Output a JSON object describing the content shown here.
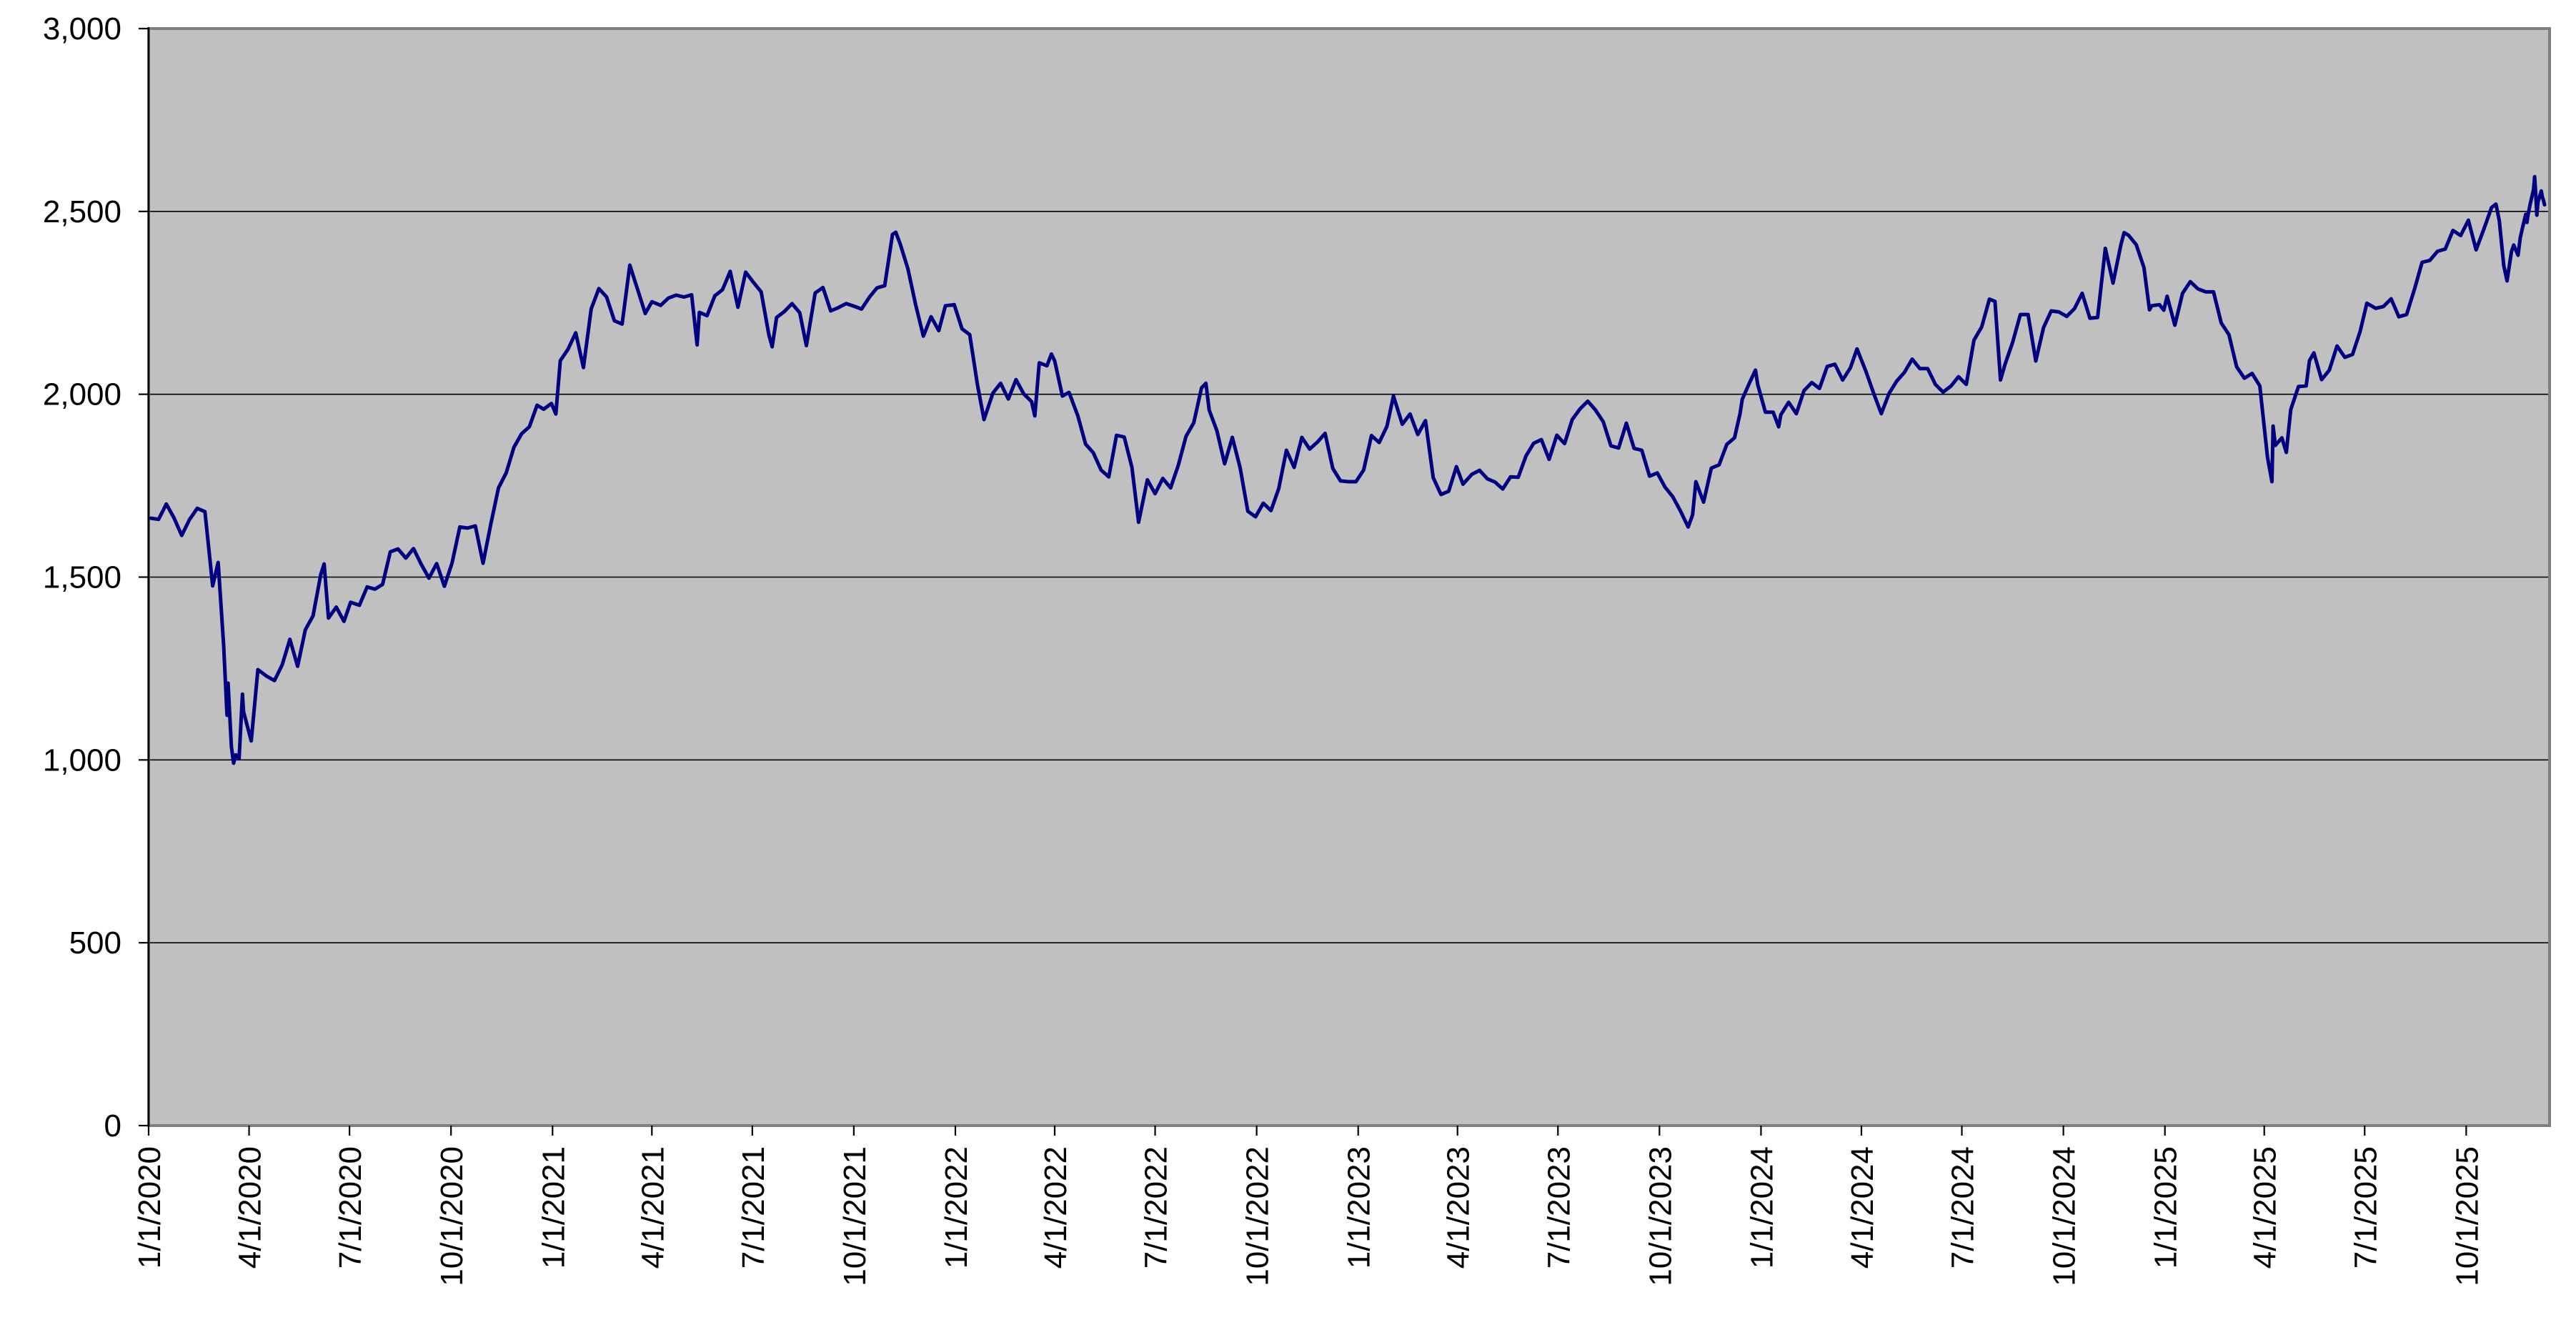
{
  "chart_data": {
    "type": "line",
    "ylim": [
      0,
      3000
    ],
    "y_tick_interval": 500,
    "y_tick_labels": [
      "0",
      "500",
      "1,000",
      "1,500",
      "2,000",
      "2,500",
      "3,000"
    ],
    "x_tick_labels": [
      "1/1/2020",
      "4/1/2020",
      "7/1/2020",
      "10/1/2020",
      "1/1/2021",
      "4/1/2021",
      "7/1/2021",
      "10/1/2021",
      "1/1/2022",
      "4/1/2022",
      "7/1/2022",
      "10/1/2022",
      "1/1/2023",
      "4/1/2023",
      "7/1/2023",
      "10/1/2023",
      "1/1/2024",
      "4/1/2024",
      "7/1/2024",
      "10/1/2024",
      "1/1/2025",
      "4/1/2025",
      "7/1/2025",
      "10/1/2025"
    ],
    "x_axis_start": "2020-01-01",
    "x_axis_end": "2025-12-11",
    "grid": true,
    "legend": false,
    "style": {
      "line_color": "#000080",
      "plot_bg": "#C0C0C0",
      "plot_border": "#7F7F7F",
      "grid_color": "#000000",
      "axis_color": "#000000",
      "text_color": "#000000",
      "page_bg": "#FFFFFF"
    },
    "points": [
      [
        "2020-01-03",
        1661
      ],
      [
        "2020-01-10",
        1658
      ],
      [
        "2020-01-17",
        1700
      ],
      [
        "2020-01-24",
        1662
      ],
      [
        "2020-01-31",
        1614
      ],
      [
        "2020-02-07",
        1657
      ],
      [
        "2020-02-14",
        1688
      ],
      [
        "2020-02-21",
        1679
      ],
      [
        "2020-02-28",
        1476
      ],
      [
        "2020-03-04",
        1540
      ],
      [
        "2020-03-06",
        1449
      ],
      [
        "2020-03-09",
        1313
      ],
      [
        "2020-03-12",
        1122
      ],
      [
        "2020-03-13",
        1210
      ],
      [
        "2020-03-16",
        1037
      ],
      [
        "2020-03-18",
        991
      ],
      [
        "2020-03-20",
        1014
      ],
      [
        "2020-03-23",
        1004
      ],
      [
        "2020-03-26",
        1180
      ],
      [
        "2020-03-27",
        1132
      ],
      [
        "2020-04-03",
        1052
      ],
      [
        "2020-04-09",
        1247
      ],
      [
        "2020-04-17",
        1229
      ],
      [
        "2020-04-24",
        1217
      ],
      [
        "2020-05-01",
        1260
      ],
      [
        "2020-05-08",
        1330
      ],
      [
        "2020-05-15",
        1256
      ],
      [
        "2020-05-22",
        1356
      ],
      [
        "2020-05-29",
        1394
      ],
      [
        "2020-06-05",
        1507
      ],
      [
        "2020-06-08",
        1536
      ],
      [
        "2020-06-12",
        1388
      ],
      [
        "2020-06-19",
        1418
      ],
      [
        "2020-06-26",
        1379
      ],
      [
        "2020-07-02",
        1431
      ],
      [
        "2020-07-10",
        1423
      ],
      [
        "2020-07-17",
        1473
      ],
      [
        "2020-07-24",
        1467
      ],
      [
        "2020-07-31",
        1480
      ],
      [
        "2020-08-07",
        1569
      ],
      [
        "2020-08-14",
        1577
      ],
      [
        "2020-08-21",
        1552
      ],
      [
        "2020-08-28",
        1578
      ],
      [
        "2020-09-04",
        1535
      ],
      [
        "2020-09-11",
        1497
      ],
      [
        "2020-09-18",
        1537
      ],
      [
        "2020-09-25",
        1475
      ],
      [
        "2020-10-02",
        1539
      ],
      [
        "2020-10-09",
        1637
      ],
      [
        "2020-10-16",
        1634
      ],
      [
        "2020-10-23",
        1640
      ],
      [
        "2020-10-30",
        1538
      ],
      [
        "2020-11-06",
        1644
      ],
      [
        "2020-11-13",
        1744
      ],
      [
        "2020-11-20",
        1785
      ],
      [
        "2020-11-27",
        1855
      ],
      [
        "2020-12-04",
        1892
      ],
      [
        "2020-12-11",
        1911
      ],
      [
        "2020-12-18",
        1970
      ],
      [
        "2020-12-24",
        1959
      ],
      [
        "2020-12-31",
        1975
      ],
      [
        "2021-01-04",
        1946
      ],
      [
        "2021-01-08",
        2092
      ],
      [
        "2021-01-15",
        2123
      ],
      [
        "2021-01-22",
        2168
      ],
      [
        "2021-01-29",
        2073
      ],
      [
        "2021-02-05",
        2233
      ],
      [
        "2021-02-12",
        2289
      ],
      [
        "2021-02-19",
        2266
      ],
      [
        "2021-02-26",
        2201
      ],
      [
        "2021-03-05",
        2192
      ],
      [
        "2021-03-12",
        2353
      ],
      [
        "2021-03-19",
        2287
      ],
      [
        "2021-03-26",
        2221
      ],
      [
        "2021-04-01",
        2253
      ],
      [
        "2021-04-09",
        2243
      ],
      [
        "2021-04-16",
        2263
      ],
      [
        "2021-04-23",
        2271
      ],
      [
        "2021-04-30",
        2266
      ],
      [
        "2021-05-07",
        2272
      ],
      [
        "2021-05-12",
        2135
      ],
      [
        "2021-05-14",
        2224
      ],
      [
        "2021-05-21",
        2215
      ],
      [
        "2021-05-28",
        2269
      ],
      [
        "2021-06-04",
        2286
      ],
      [
        "2021-06-11",
        2336
      ],
      [
        "2021-06-18",
        2238
      ],
      [
        "2021-06-25",
        2334
      ],
      [
        "2021-07-02",
        2306
      ],
      [
        "2021-07-09",
        2280
      ],
      [
        "2021-07-16",
        2163
      ],
      [
        "2021-07-19",
        2130
      ],
      [
        "2021-07-23",
        2210
      ],
      [
        "2021-07-30",
        2226
      ],
      [
        "2021-08-06",
        2248
      ],
      [
        "2021-08-13",
        2223
      ],
      [
        "2021-08-19",
        2133
      ],
      [
        "2021-08-27",
        2277
      ],
      [
        "2021-09-03",
        2292
      ],
      [
        "2021-09-10",
        2228
      ],
      [
        "2021-09-17",
        2237
      ],
      [
        "2021-09-24",
        2248
      ],
      [
        "2021-10-01",
        2241
      ],
      [
        "2021-10-08",
        2233
      ],
      [
        "2021-10-15",
        2265
      ],
      [
        "2021-10-22",
        2291
      ],
      [
        "2021-10-29",
        2297
      ],
      [
        "2021-11-05",
        2437
      ],
      [
        "2021-11-08",
        2443
      ],
      [
        "2021-11-12",
        2411
      ],
      [
        "2021-11-19",
        2343
      ],
      [
        "2021-11-26",
        2245
      ],
      [
        "2021-12-03",
        2159
      ],
      [
        "2021-12-10",
        2212
      ],
      [
        "2021-12-17",
        2174
      ],
      [
        "2021-12-23",
        2242
      ],
      [
        "2021-12-31",
        2245
      ],
      [
        "2022-01-07",
        2179
      ],
      [
        "2022-01-14",
        2163
      ],
      [
        "2022-01-21",
        2026
      ],
      [
        "2022-01-27",
        1931
      ],
      [
        "2022-02-04",
        2003
      ],
      [
        "2022-02-11",
        2030
      ],
      [
        "2022-02-18",
        1987
      ],
      [
        "2022-02-25",
        2040
      ],
      [
        "2022-03-04",
        2001
      ],
      [
        "2022-03-11",
        1980
      ],
      [
        "2022-03-14",
        1941
      ],
      [
        "2022-03-18",
        2086
      ],
      [
        "2022-03-25",
        2078
      ],
      [
        "2022-03-29",
        2110
      ],
      [
        "2022-04-01",
        2091
      ],
      [
        "2022-04-08",
        1995
      ],
      [
        "2022-04-14",
        2005
      ],
      [
        "2022-04-22",
        1941
      ],
      [
        "2022-04-29",
        1864
      ],
      [
        "2022-05-06",
        1840
      ],
      [
        "2022-05-13",
        1793
      ],
      [
        "2022-05-20",
        1774
      ],
      [
        "2022-05-27",
        1888
      ],
      [
        "2022-06-03",
        1883
      ],
      [
        "2022-06-10",
        1800
      ],
      [
        "2022-06-16",
        1650
      ],
      [
        "2022-06-24",
        1766
      ],
      [
        "2022-07-01",
        1728
      ],
      [
        "2022-07-08",
        1770
      ],
      [
        "2022-07-15",
        1744
      ],
      [
        "2022-07-22",
        1806
      ],
      [
        "2022-07-29",
        1885
      ],
      [
        "2022-08-05",
        1922
      ],
      [
        "2022-08-12",
        2017
      ],
      [
        "2022-08-16",
        2030
      ],
      [
        "2022-08-19",
        1957
      ],
      [
        "2022-08-26",
        1900
      ],
      [
        "2022-09-02",
        1810
      ],
      [
        "2022-09-09",
        1882
      ],
      [
        "2022-09-16",
        1799
      ],
      [
        "2022-09-23",
        1680
      ],
      [
        "2022-09-30",
        1665
      ],
      [
        "2022-10-07",
        1702
      ],
      [
        "2022-10-14",
        1682
      ],
      [
        "2022-10-21",
        1742
      ],
      [
        "2022-10-28",
        1847
      ],
      [
        "2022-11-04",
        1800
      ],
      [
        "2022-11-11",
        1882
      ],
      [
        "2022-11-18",
        1850
      ],
      [
        "2022-11-25",
        1869
      ],
      [
        "2022-12-02",
        1893
      ],
      [
        "2022-12-09",
        1797
      ],
      [
        "2022-12-16",
        1763
      ],
      [
        "2022-12-23",
        1761
      ],
      [
        "2022-12-30",
        1761
      ],
      [
        "2023-01-06",
        1793
      ],
      [
        "2023-01-13",
        1887
      ],
      [
        "2023-01-20",
        1868
      ],
      [
        "2023-01-27",
        1912
      ],
      [
        "2023-02-02",
        1995
      ],
      [
        "2023-02-10",
        1918
      ],
      [
        "2023-02-17",
        1946
      ],
      [
        "2023-02-24",
        1890
      ],
      [
        "2023-03-03",
        1928
      ],
      [
        "2023-03-10",
        1772
      ],
      [
        "2023-03-17",
        1726
      ],
      [
        "2023-03-24",
        1735
      ],
      [
        "2023-03-31",
        1802
      ],
      [
        "2023-04-06",
        1754
      ],
      [
        "2023-04-14",
        1781
      ],
      [
        "2023-04-21",
        1792
      ],
      [
        "2023-04-28",
        1769
      ],
      [
        "2023-05-05",
        1760
      ],
      [
        "2023-05-12",
        1741
      ],
      [
        "2023-05-19",
        1774
      ],
      [
        "2023-05-26",
        1773
      ],
      [
        "2023-06-02",
        1831
      ],
      [
        "2023-06-09",
        1866
      ],
      [
        "2023-06-16",
        1876
      ],
      [
        "2023-06-23",
        1822
      ],
      [
        "2023-06-30",
        1888
      ],
      [
        "2023-07-07",
        1865
      ],
      [
        "2023-07-14",
        1931
      ],
      [
        "2023-07-21",
        1960
      ],
      [
        "2023-07-28",
        1981
      ],
      [
        "2023-08-04",
        1957
      ],
      [
        "2023-08-11",
        1925
      ],
      [
        "2023-08-18",
        1859
      ],
      [
        "2023-08-25",
        1853
      ],
      [
        "2023-09-01",
        1921
      ],
      [
        "2023-09-08",
        1852
      ],
      [
        "2023-09-15",
        1847
      ],
      [
        "2023-09-22",
        1776
      ],
      [
        "2023-09-29",
        1785
      ],
      [
        "2023-10-06",
        1746
      ],
      [
        "2023-10-13",
        1720
      ],
      [
        "2023-10-20",
        1681
      ],
      [
        "2023-10-27",
        1637
      ],
      [
        "2023-10-31",
        1670
      ],
      [
        "2023-11-03",
        1761
      ],
      [
        "2023-11-10",
        1705
      ],
      [
        "2023-11-17",
        1798
      ],
      [
        "2023-11-24",
        1807
      ],
      [
        "2023-12-01",
        1863
      ],
      [
        "2023-12-08",
        1881
      ],
      [
        "2023-12-13",
        1947
      ],
      [
        "2023-12-15",
        1986
      ],
      [
        "2023-12-22",
        2034
      ],
      [
        "2023-12-27",
        2066
      ],
      [
        "2023-12-29",
        2027
      ],
      [
        "2024-01-05",
        1951
      ],
      [
        "2024-01-12",
        1951
      ],
      [
        "2024-01-17",
        1911
      ],
      [
        "2024-01-19",
        1944
      ],
      [
        "2024-01-26",
        1978
      ],
      [
        "2024-02-02",
        1947
      ],
      [
        "2024-02-09",
        2010
      ],
      [
        "2024-02-16",
        2032
      ],
      [
        "2024-02-23",
        2016
      ],
      [
        "2024-03-01",
        2076
      ],
      [
        "2024-03-08",
        2082
      ],
      [
        "2024-03-15",
        2039
      ],
      [
        "2024-03-22",
        2072
      ],
      [
        "2024-03-28",
        2124
      ],
      [
        "2024-04-05",
        2063
      ],
      [
        "2024-04-12",
        2003
      ],
      [
        "2024-04-19",
        1947
      ],
      [
        "2024-04-26",
        2002
      ],
      [
        "2024-05-03",
        2036
      ],
      [
        "2024-05-10",
        2060
      ],
      [
        "2024-05-17",
        2096
      ],
      [
        "2024-05-24",
        2070
      ],
      [
        "2024-05-31",
        2070
      ],
      [
        "2024-06-07",
        2027
      ],
      [
        "2024-06-14",
        2006
      ],
      [
        "2024-06-21",
        2022
      ],
      [
        "2024-06-28",
        2048
      ],
      [
        "2024-07-05",
        2027
      ],
      [
        "2024-07-12",
        2148
      ],
      [
        "2024-07-19",
        2184
      ],
      [
        "2024-07-26",
        2260
      ],
      [
        "2024-07-31",
        2254
      ],
      [
        "2024-08-05",
        2039
      ],
      [
        "2024-08-09",
        2081
      ],
      [
        "2024-08-16",
        2142
      ],
      [
        "2024-08-23",
        2218
      ],
      [
        "2024-08-30",
        2218
      ],
      [
        "2024-09-06",
        2091
      ],
      [
        "2024-09-13",
        2182
      ],
      [
        "2024-09-20",
        2228
      ],
      [
        "2024-09-27",
        2225
      ],
      [
        "2024-10-04",
        2213
      ],
      [
        "2024-10-11",
        2234
      ],
      [
        "2024-10-18",
        2276
      ],
      [
        "2024-10-25",
        2208
      ],
      [
        "2024-11-01",
        2210
      ],
      [
        "2024-11-08",
        2399
      ],
      [
        "2024-11-15",
        2304
      ],
      [
        "2024-11-22",
        2407
      ],
      [
        "2024-11-25",
        2442
      ],
      [
        "2024-11-29",
        2435
      ],
      [
        "2024-12-06",
        2409
      ],
      [
        "2024-12-13",
        2346
      ],
      [
        "2024-12-18",
        2231
      ],
      [
        "2024-12-20",
        2242
      ],
      [
        "2024-12-27",
        2245
      ],
      [
        "2024-12-31",
        2230
      ],
      [
        "2025-01-03",
        2268
      ],
      [
        "2025-01-10",
        2189
      ],
      [
        "2025-01-17",
        2276
      ],
      [
        "2025-01-24",
        2308
      ],
      [
        "2025-01-31",
        2288
      ],
      [
        "2025-02-07",
        2280
      ],
      [
        "2025-02-14",
        2280
      ],
      [
        "2025-02-21",
        2195
      ],
      [
        "2025-02-28",
        2163
      ],
      [
        "2025-03-07",
        2075
      ],
      [
        "2025-03-14",
        2044
      ],
      [
        "2025-03-21",
        2057
      ],
      [
        "2025-03-28",
        2023
      ],
      [
        "2025-04-04",
        1827
      ],
      [
        "2025-04-08",
        1761
      ],
      [
        "2025-04-09",
        1913
      ],
      [
        "2025-04-11",
        1860
      ],
      [
        "2025-04-17",
        1881
      ],
      [
        "2025-04-21",
        1841
      ],
      [
        "2025-04-25",
        1958
      ],
      [
        "2025-05-02",
        2021
      ],
      [
        "2025-05-09",
        2023
      ],
      [
        "2025-05-12",
        2092
      ],
      [
        "2025-05-16",
        2113
      ],
      [
        "2025-05-23",
        2040
      ],
      [
        "2025-05-30",
        2066
      ],
      [
        "2025-06-06",
        2132
      ],
      [
        "2025-06-13",
        2101
      ],
      [
        "2025-06-20",
        2109
      ],
      [
        "2025-06-27",
        2173
      ],
      [
        "2025-07-03",
        2249
      ],
      [
        "2025-07-11",
        2235
      ],
      [
        "2025-07-18",
        2240
      ],
      [
        "2025-07-25",
        2261
      ],
      [
        "2025-08-01",
        2212
      ],
      [
        "2025-08-08",
        2218
      ],
      [
        "2025-08-15",
        2286
      ],
      [
        "2025-08-22",
        2361
      ],
      [
        "2025-08-29",
        2366
      ],
      [
        "2025-09-05",
        2391
      ],
      [
        "2025-09-12",
        2397
      ],
      [
        "2025-09-19",
        2448
      ],
      [
        "2025-09-26",
        2434
      ],
      [
        "2025-10-03",
        2476
      ],
      [
        "2025-10-10",
        2395
      ],
      [
        "2025-10-17",
        2452
      ],
      [
        "2025-10-24",
        2511
      ],
      [
        "2025-10-28",
        2520
      ],
      [
        "2025-10-31",
        2474
      ],
      [
        "2025-11-04",
        2352
      ],
      [
        "2025-11-07",
        2310
      ],
      [
        "2025-11-11",
        2390
      ],
      [
        "2025-11-13",
        2408
      ],
      [
        "2025-11-17",
        2380
      ],
      [
        "2025-11-19",
        2428
      ],
      [
        "2025-11-21",
        2455
      ],
      [
        "2025-11-24",
        2492
      ],
      [
        "2025-11-25",
        2470
      ],
      [
        "2025-11-26",
        2490
      ],
      [
        "2025-11-28",
        2520
      ],
      [
        "2025-12-01",
        2560
      ],
      [
        "2025-12-02",
        2595
      ],
      [
        "2025-12-03",
        2550
      ],
      [
        "2025-12-04",
        2490
      ],
      [
        "2025-12-05",
        2525
      ],
      [
        "2025-12-08",
        2556
      ],
      [
        "2025-12-09",
        2540
      ],
      [
        "2025-12-10",
        2530
      ],
      [
        "2025-12-11",
        2518
      ]
    ]
  }
}
